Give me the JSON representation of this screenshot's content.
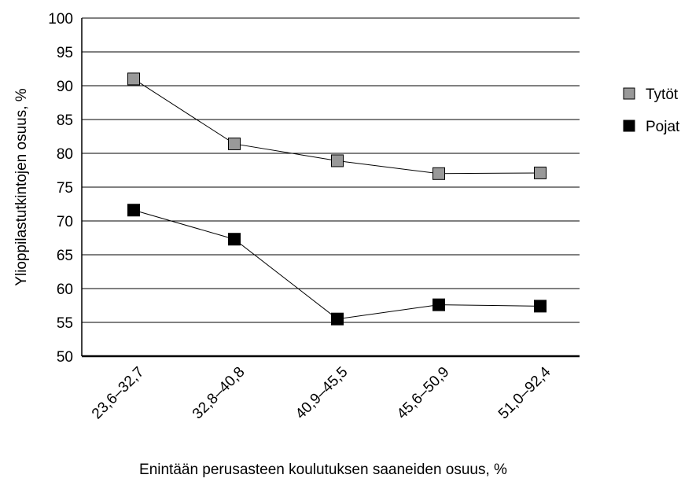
{
  "chart_data": {
    "type": "line",
    "title": "",
    "xlabel": "Enintään perusasteen koulutuksen saaneiden osuus, %",
    "ylabel": "Ylioppilastutkintojen osuus, %",
    "categories": [
      "23,6–32,7",
      "32,8–40,8",
      "40,9–45,5",
      "45,6–50,9",
      "51,0–92,4"
    ],
    "ylim": [
      50,
      100
    ],
    "yticks": [
      50,
      55,
      60,
      65,
      70,
      75,
      80,
      85,
      90,
      95,
      100
    ],
    "grid": true,
    "legend_position": "right",
    "series": [
      {
        "name": "Tytöt",
        "color": "#999999",
        "values": [
          91.0,
          81.4,
          78.9,
          77.0,
          77.1
        ]
      },
      {
        "name": "Pojat",
        "color": "#000000",
        "values": [
          71.6,
          67.3,
          55.5,
          57.6,
          57.4
        ]
      }
    ]
  }
}
